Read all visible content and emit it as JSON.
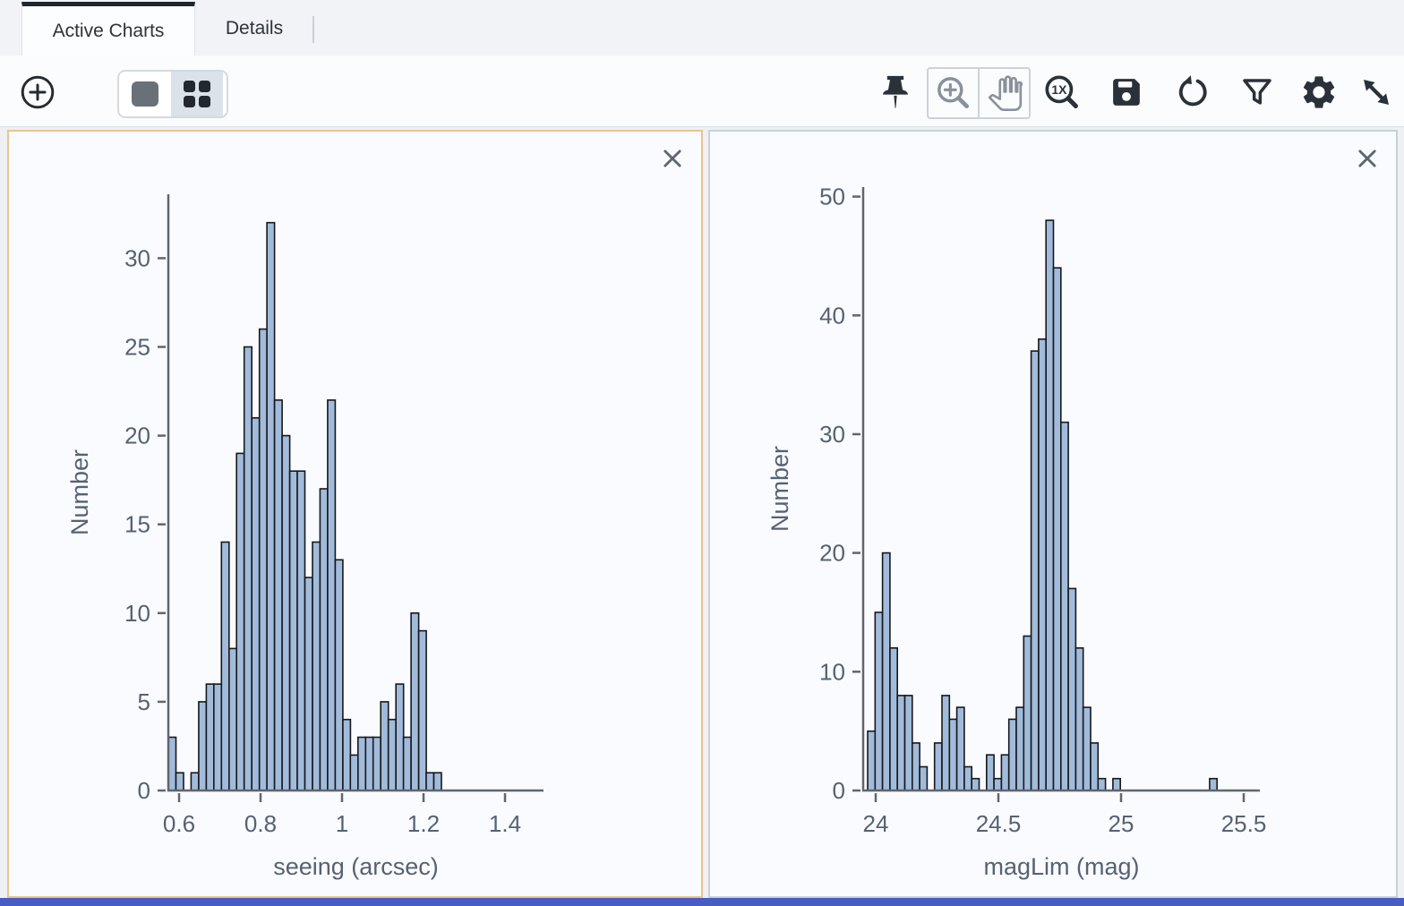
{
  "tabs": [
    {
      "label": "Active Charts",
      "active": true
    },
    {
      "label": "Details",
      "active": false
    }
  ],
  "toolbar": {
    "add_chart": "plus-circle",
    "layout_single": "single-panel",
    "layout_grid": "grid-2x2",
    "layout_grid_selected": true,
    "pin": "pin",
    "zoom_in": "magnifier-plus",
    "pan": "hand",
    "zoom_original": "magnifier-1x",
    "zoom_original_label": "1X",
    "save": "floppy-disk",
    "refresh": "rotate-arrow",
    "filter": "funnel",
    "settings": "gear",
    "expand": "diagonal-resize-arrow"
  },
  "colors": {
    "bar_fill": "#a2bbda",
    "bar_edge": "#15181d",
    "axis_line": "#60666d",
    "tick_text": "#566173",
    "selected_panel_border": "#e9c48f",
    "panel_border": "#c8d1da",
    "footer_accent": "#4a5cc4",
    "icon_dark": "#2b3139",
    "icon_gray": "#8a919b"
  },
  "chart_data": [
    {
      "type": "bar",
      "subtype": "histogram",
      "title": "",
      "xlabel": "seeing (arcsec)",
      "ylabel": "Number",
      "bin_start": 0.5736,
      "bin_width": 0.01862,
      "values": [
        3,
        1,
        0,
        1,
        5,
        6,
        6,
        14,
        8,
        19,
        25,
        21,
        26,
        32,
        22,
        20,
        18,
        18,
        12,
        14,
        17,
        22,
        13,
        4,
        2,
        3,
        3,
        3,
        5,
        4,
        6,
        3,
        10,
        9,
        1,
        1
      ],
      "x_ticks": [
        0.6,
        0.8,
        1,
        1.2,
        1.4
      ],
      "x_tick_labels": [
        "0.6",
        "0.8",
        "1",
        "1.2",
        "1.4"
      ],
      "y_ticks": [
        0,
        5,
        10,
        15,
        20,
        25,
        30
      ],
      "x_range": [
        0.5736,
        1.4945
      ],
      "y_range": [
        0,
        33.6
      ],
      "grid": false,
      "legend": "none",
      "selected": true
    },
    {
      "type": "bar",
      "subtype": "histogram",
      "title": "",
      "xlabel": "magLim (mag)",
      "ylabel": "Number",
      "bin_start": 23.967,
      "bin_width": 0.0303,
      "values": [
        5,
        15,
        20,
        12,
        8,
        8,
        4,
        2,
        0,
        4,
        8,
        6,
        7,
        2,
        1,
        0,
        3,
        1,
        3,
        6,
        7,
        13,
        37,
        38,
        48,
        44,
        31,
        17,
        12,
        7,
        4,
        1,
        0,
        1,
        0,
        0,
        0,
        0,
        0,
        0,
        0,
        0,
        0,
        0,
        0,
        0,
        1,
        0
      ],
      "x_ticks": [
        24,
        24.5,
        25,
        25.5
      ],
      "x_tick_labels": [
        "24",
        "24.5",
        "25",
        "25.5"
      ],
      "y_ticks": [
        0,
        10,
        20,
        30,
        40,
        50
      ],
      "x_range": [
        23.9489,
        25.5657
      ],
      "y_range": [
        0,
        50.8
      ],
      "grid": false,
      "legend": "none",
      "selected": false
    }
  ]
}
